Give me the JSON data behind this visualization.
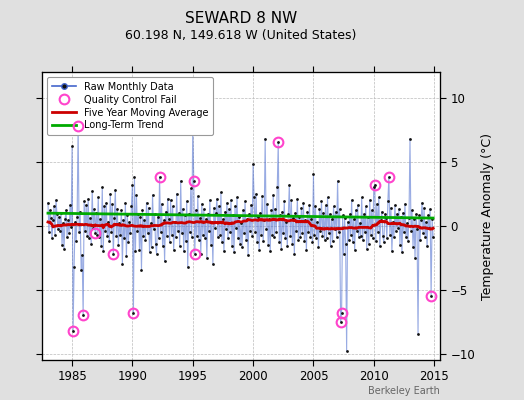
{
  "title": "SEWARD 8 NW",
  "subtitle": "60.198 N, 149.618 W (United States)",
  "ylabel": "Temperature Anomaly (°C)",
  "watermark": "Berkeley Earth",
  "xlim": [
    1982.5,
    2015.5
  ],
  "ylim": [
    -10.5,
    12
  ],
  "yticks": [
    -10,
    -5,
    0,
    5,
    10
  ],
  "xticks": [
    1985,
    1990,
    1995,
    2000,
    2005,
    2010,
    2015
  ],
  "bg_color": "#e0e0e0",
  "plot_bg_color": "#ffffff",
  "raw_line_color": "#4466cc",
  "raw_line_alpha": 0.55,
  "raw_dot_color": "#111111",
  "ma_color": "#cc0000",
  "trend_color": "#00aa00",
  "qc_color": "#ff44cc",
  "grid_color": "#bbbbbb",
  "grid_style": "--",
  "trend_intercept": 0.78,
  "trend_slope": -0.012,
  "raw_data": [
    [
      1983.0,
      1.8
    ],
    [
      1983.083,
      -0.5
    ],
    [
      1983.167,
      1.2
    ],
    [
      1983.25,
      0.6
    ],
    [
      1983.333,
      -1.0
    ],
    [
      1983.417,
      0.4
    ],
    [
      1983.5,
      1.5
    ],
    [
      1983.583,
      -0.7
    ],
    [
      1983.667,
      2.0
    ],
    [
      1983.75,
      0.9
    ],
    [
      1983.833,
      -0.3
    ],
    [
      1983.917,
      0.7
    ],
    [
      1984.0,
      -0.4
    ],
    [
      1984.083,
      1.0
    ],
    [
      1984.167,
      -1.5
    ],
    [
      1984.25,
      0.2
    ],
    [
      1984.333,
      -1.8
    ],
    [
      1984.417,
      0.5
    ],
    [
      1984.5,
      1.2
    ],
    [
      1984.583,
      -0.9
    ],
    [
      1984.667,
      0.4
    ],
    [
      1984.75,
      -0.6
    ],
    [
      1984.833,
      1.6
    ],
    [
      1984.917,
      -0.1
    ],
    [
      1985.0,
      6.2
    ],
    [
      1985.083,
      -8.2
    ],
    [
      1985.167,
      -3.2
    ],
    [
      1985.25,
      0.3
    ],
    [
      1985.333,
      -1.2
    ],
    [
      1985.417,
      0.7
    ],
    [
      1985.5,
      7.8
    ],
    [
      1985.583,
      -0.5
    ],
    [
      1985.667,
      1.1
    ],
    [
      1985.75,
      -3.5
    ],
    [
      1985.833,
      -2.3
    ],
    [
      1985.917,
      -7.0
    ],
    [
      1986.0,
      1.9
    ],
    [
      1986.083,
      -0.4
    ],
    [
      1986.167,
      1.6
    ],
    [
      1986.25,
      -0.8
    ],
    [
      1986.333,
      2.1
    ],
    [
      1986.417,
      -1.0
    ],
    [
      1986.5,
      0.6
    ],
    [
      1986.583,
      -1.4
    ],
    [
      1986.667,
      2.7
    ],
    [
      1986.75,
      -0.2
    ],
    [
      1986.833,
      1.3
    ],
    [
      1986.917,
      -0.6
    ],
    [
      1987.0,
      1.0
    ],
    [
      1987.083,
      -0.7
    ],
    [
      1987.167,
      2.2
    ],
    [
      1987.25,
      -0.9
    ],
    [
      1987.333,
      0.5
    ],
    [
      1987.417,
      -1.6
    ],
    [
      1987.5,
      3.0
    ],
    [
      1987.583,
      -2.0
    ],
    [
      1987.667,
      1.5
    ],
    [
      1987.75,
      -0.4
    ],
    [
      1987.833,
      1.8
    ],
    [
      1987.917,
      -0.8
    ],
    [
      1988.0,
      0.3
    ],
    [
      1988.083,
      -1.2
    ],
    [
      1988.167,
      2.5
    ],
    [
      1988.25,
      -0.5
    ],
    [
      1988.333,
      1.7
    ],
    [
      1988.417,
      -2.2
    ],
    [
      1988.5,
      0.6
    ],
    [
      1988.583,
      2.8
    ],
    [
      1988.667,
      -0.8
    ],
    [
      1988.75,
      1.3
    ],
    [
      1988.833,
      -1.5
    ],
    [
      1988.917,
      0.2
    ],
    [
      1989.0,
      -0.7
    ],
    [
      1989.083,
      1.2
    ],
    [
      1989.167,
      -3.0
    ],
    [
      1989.25,
      0.4
    ],
    [
      1989.333,
      -1.0
    ],
    [
      1989.417,
      1.8
    ],
    [
      1989.5,
      -2.4
    ],
    [
      1989.583,
      0.8
    ],
    [
      1989.667,
      -1.3
    ],
    [
      1989.75,
      0.3
    ],
    [
      1989.833,
      -0.6
    ],
    [
      1989.917,
      1.5
    ],
    [
      1990.0,
      3.2
    ],
    [
      1990.083,
      -6.8
    ],
    [
      1990.167,
      3.8
    ],
    [
      1990.25,
      -2.0
    ],
    [
      1990.333,
      2.4
    ],
    [
      1990.417,
      -0.4
    ],
    [
      1990.5,
      0.9
    ],
    [
      1990.583,
      -1.9
    ],
    [
      1990.667,
      0.7
    ],
    [
      1990.75,
      -3.5
    ],
    [
      1990.833,
      1.2
    ],
    [
      1990.917,
      -0.8
    ],
    [
      1991.0,
      0.4
    ],
    [
      1991.083,
      -1.1
    ],
    [
      1991.167,
      1.8
    ],
    [
      1991.25,
      -0.6
    ],
    [
      1991.333,
      1.4
    ],
    [
      1991.417,
      -2.1
    ],
    [
      1991.5,
      0.2
    ],
    [
      1991.583,
      -1.7
    ],
    [
      1991.667,
      2.4
    ],
    [
      1991.75,
      -0.3
    ],
    [
      1991.833,
      0.9
    ],
    [
      1991.917,
      -1.4
    ],
    [
      1992.0,
      -2.2
    ],
    [
      1992.083,
      0.7
    ],
    [
      1992.167,
      -1.0
    ],
    [
      1992.25,
      3.8
    ],
    [
      1992.333,
      -0.5
    ],
    [
      1992.417,
      1.7
    ],
    [
      1992.5,
      -1.6
    ],
    [
      1992.583,
      0.4
    ],
    [
      1992.667,
      -2.8
    ],
    [
      1992.75,
      1.1
    ],
    [
      1992.833,
      -0.8
    ],
    [
      1992.917,
      2.1
    ],
    [
      1993.0,
      0.5
    ],
    [
      1993.083,
      -1.3
    ],
    [
      1993.167,
      2.0
    ],
    [
      1993.25,
      -0.7
    ],
    [
      1993.333,
      1.5
    ],
    [
      1993.417,
      -1.9
    ],
    [
      1993.5,
      0.3
    ],
    [
      1993.583,
      -0.9
    ],
    [
      1993.667,
      2.5
    ],
    [
      1993.75,
      -0.4
    ],
    [
      1993.833,
      1.0
    ],
    [
      1993.917,
      -1.6
    ],
    [
      1994.0,
      3.5
    ],
    [
      1994.083,
      -0.6
    ],
    [
      1994.167,
      1.3
    ],
    [
      1994.25,
      -2.0
    ],
    [
      1994.333,
      0.8
    ],
    [
      1994.417,
      -1.2
    ],
    [
      1994.5,
      1.9
    ],
    [
      1994.583,
      -3.2
    ],
    [
      1994.667,
      0.9
    ],
    [
      1994.75,
      -0.5
    ],
    [
      1994.833,
      2.9
    ],
    [
      1994.917,
      -0.9
    ],
    [
      1995.0,
      7.8
    ],
    [
      1995.083,
      3.5
    ],
    [
      1995.167,
      -2.2
    ],
    [
      1995.25,
      1.2
    ],
    [
      1995.333,
      -0.8
    ],
    [
      1995.417,
      2.3
    ],
    [
      1995.5,
      -1.1
    ],
    [
      1995.583,
      0.6
    ],
    [
      1995.667,
      -2.2
    ],
    [
      1995.75,
      1.7
    ],
    [
      1995.833,
      -0.7
    ],
    [
      1995.917,
      1.3
    ],
    [
      1996.0,
      -1.0
    ],
    [
      1996.083,
      0.5
    ],
    [
      1996.167,
      -2.5
    ],
    [
      1996.25,
      0.9
    ],
    [
      1996.333,
      -0.4
    ],
    [
      1996.417,
      2.0
    ],
    [
      1996.5,
      -1.5
    ],
    [
      1996.583,
      0.3
    ],
    [
      1996.667,
      -3.0
    ],
    [
      1996.75,
      1.4
    ],
    [
      1996.833,
      -0.2
    ],
    [
      1996.917,
      1.0
    ],
    [
      1997.0,
      2.1
    ],
    [
      1997.083,
      -0.9
    ],
    [
      1997.167,
      1.5
    ],
    [
      1997.25,
      -0.7
    ],
    [
      1997.333,
      2.6
    ],
    [
      1997.417,
      -1.3
    ],
    [
      1997.5,
      0.5
    ],
    [
      1997.583,
      -2.0
    ],
    [
      1997.667,
      1.1
    ],
    [
      1997.75,
      -0.3
    ],
    [
      1997.833,
      1.8
    ],
    [
      1997.917,
      -1.0
    ],
    [
      1998.0,
      1.3
    ],
    [
      1998.083,
      -0.5
    ],
    [
      1998.167,
      2.0
    ],
    [
      1998.25,
      -1.6
    ],
    [
      1998.333,
      0.8
    ],
    [
      1998.417,
      -2.1
    ],
    [
      1998.5,
      1.5
    ],
    [
      1998.583,
      -0.2
    ],
    [
      1998.667,
      2.2
    ],
    [
      1998.75,
      -1.0
    ],
    [
      1998.833,
      0.7
    ],
    [
      1998.917,
      -1.4
    ],
    [
      1999.0,
      0.2
    ],
    [
      1999.083,
      -1.7
    ],
    [
      1999.167,
      1.2
    ],
    [
      1999.25,
      -0.6
    ],
    [
      1999.333,
      1.9
    ],
    [
      1999.417,
      -1.1
    ],
    [
      1999.5,
      0.5
    ],
    [
      1999.583,
      -2.3
    ],
    [
      1999.667,
      0.9
    ],
    [
      1999.75,
      -0.4
    ],
    [
      1999.833,
      1.6
    ],
    [
      1999.917,
      -0.8
    ],
    [
      2000.0,
      4.8
    ],
    [
      2000.083,
      2.2
    ],
    [
      2000.167,
      -0.5
    ],
    [
      2000.25,
      2.5
    ],
    [
      2000.333,
      -1.3
    ],
    [
      2000.417,
      0.7
    ],
    [
      2000.5,
      -1.9
    ],
    [
      2000.583,
      1.0
    ],
    [
      2000.667,
      -0.7
    ],
    [
      2000.75,
      2.3
    ],
    [
      2000.833,
      -1.2
    ],
    [
      2000.917,
      0.4
    ],
    [
      2001.0,
      6.8
    ],
    [
      2001.083,
      -0.3
    ],
    [
      2001.167,
      1.7
    ],
    [
      2001.25,
      -1.5
    ],
    [
      2001.333,
      0.5
    ],
    [
      2001.417,
      -2.0
    ],
    [
      2001.5,
      1.2
    ],
    [
      2001.583,
      -0.7
    ],
    [
      2001.667,
      2.4
    ],
    [
      2001.75,
      -0.9
    ],
    [
      2001.833,
      1.3
    ],
    [
      2001.917,
      -0.5
    ],
    [
      2002.0,
      3.0
    ],
    [
      2002.083,
      6.5
    ],
    [
      2002.167,
      -1.3
    ],
    [
      2002.25,
      0.8
    ],
    [
      2002.333,
      -1.8
    ],
    [
      2002.417,
      1.1
    ],
    [
      2002.5,
      -0.6
    ],
    [
      2002.583,
      1.9
    ],
    [
      2002.667,
      -1.0
    ],
    [
      2002.75,
      0.3
    ],
    [
      2002.833,
      -1.6
    ],
    [
      2002.917,
      0.9
    ],
    [
      2003.0,
      3.2
    ],
    [
      2003.083,
      -0.8
    ],
    [
      2003.167,
      2.0
    ],
    [
      2003.25,
      -1.4
    ],
    [
      2003.333,
      0.6
    ],
    [
      2003.417,
      -2.2
    ],
    [
      2003.5,
      1.0
    ],
    [
      2003.583,
      -0.4
    ],
    [
      2003.667,
      2.1
    ],
    [
      2003.75,
      -1.1
    ],
    [
      2003.833,
      0.7
    ],
    [
      2003.917,
      -0.9
    ],
    [
      2004.0,
      1.4
    ],
    [
      2004.083,
      -0.6
    ],
    [
      2004.167,
      1.8
    ],
    [
      2004.25,
      -1.2
    ],
    [
      2004.333,
      0.4
    ],
    [
      2004.417,
      -1.9
    ],
    [
      2004.5,
      1.1
    ],
    [
      2004.583,
      -0.5
    ],
    [
      2004.667,
      1.6
    ],
    [
      2004.75,
      -0.9
    ],
    [
      2004.833,
      0.5
    ],
    [
      2004.917,
      -1.3
    ],
    [
      2005.0,
      4.0
    ],
    [
      2005.083,
      -0.7
    ],
    [
      2005.167,
      1.5
    ],
    [
      2005.25,
      -1.0
    ],
    [
      2005.333,
      0.3
    ],
    [
      2005.417,
      -1.7
    ],
    [
      2005.5,
      1.3
    ],
    [
      2005.583,
      -0.4
    ],
    [
      2005.667,
      1.9
    ],
    [
      2005.75,
      -0.8
    ],
    [
      2005.833,
      1.0
    ],
    [
      2005.917,
      -1.1
    ],
    [
      2006.0,
      1.6
    ],
    [
      2006.083,
      -1.0
    ],
    [
      2006.167,
      2.2
    ],
    [
      2006.25,
      -0.6
    ],
    [
      2006.333,
      0.9
    ],
    [
      2006.417,
      -1.6
    ],
    [
      2006.5,
      0.5
    ],
    [
      2006.583,
      -1.2
    ],
    [
      2006.667,
      1.5
    ],
    [
      2006.75,
      -0.3
    ],
    [
      2006.833,
      1.1
    ],
    [
      2006.917,
      -0.9
    ],
    [
      2007.0,
      3.5
    ],
    [
      2007.083,
      -0.5
    ],
    [
      2007.167,
      1.3
    ],
    [
      2007.25,
      -7.5
    ],
    [
      2007.333,
      -6.8
    ],
    [
      2007.417,
      0.8
    ],
    [
      2007.5,
      -2.2
    ],
    [
      2007.583,
      0.6
    ],
    [
      2007.667,
      -1.4
    ],
    [
      2007.75,
      -9.8
    ],
    [
      2007.833,
      0.3
    ],
    [
      2007.917,
      -1.1
    ],
    [
      2008.0,
      0.9
    ],
    [
      2008.083,
      -0.7
    ],
    [
      2008.167,
      2.0
    ],
    [
      2008.25,
      -1.3
    ],
    [
      2008.333,
      0.5
    ],
    [
      2008.417,
      -1.9
    ],
    [
      2008.5,
      1.2
    ],
    [
      2008.583,
      -0.4
    ],
    [
      2008.667,
      1.6
    ],
    [
      2008.75,
      -0.9
    ],
    [
      2008.833,
      0.2
    ],
    [
      2008.917,
      -0.8
    ],
    [
      2009.0,
      2.2
    ],
    [
      2009.083,
      -1.1
    ],
    [
      2009.167,
      0.9
    ],
    [
      2009.25,
      -0.5
    ],
    [
      2009.333,
      1.5
    ],
    [
      2009.417,
      -1.8
    ],
    [
      2009.5,
      0.7
    ],
    [
      2009.583,
      -1.4
    ],
    [
      2009.667,
      2.0
    ],
    [
      2009.75,
      -0.7
    ],
    [
      2009.833,
      1.2
    ],
    [
      2009.917,
      -1.0
    ],
    [
      2010.0,
      3.0
    ],
    [
      2010.083,
      3.2
    ],
    [
      2010.167,
      -1.2
    ],
    [
      2010.25,
      1.7
    ],
    [
      2010.333,
      -0.5
    ],
    [
      2010.417,
      2.2
    ],
    [
      2010.5,
      -1.6
    ],
    [
      2010.583,
      0.4
    ],
    [
      2010.667,
      1.1
    ],
    [
      2010.75,
      -0.8
    ],
    [
      2010.833,
      -1.3
    ],
    [
      2010.917,
      0.9
    ],
    [
      2011.0,
      0.6
    ],
    [
      2011.083,
      -1.0
    ],
    [
      2011.167,
      1.9
    ],
    [
      2011.25,
      3.8
    ],
    [
      2011.333,
      -0.7
    ],
    [
      2011.417,
      1.4
    ],
    [
      2011.5,
      -2.0
    ],
    [
      2011.583,
      0.3
    ],
    [
      2011.667,
      -0.9
    ],
    [
      2011.75,
      1.6
    ],
    [
      2011.833,
      -0.4
    ],
    [
      2011.917,
      0.9
    ],
    [
      2012.0,
      -0.2
    ],
    [
      2012.083,
      1.3
    ],
    [
      2012.167,
      -1.5
    ],
    [
      2012.25,
      0.7
    ],
    [
      2012.333,
      -2.1
    ],
    [
      2012.417,
      1.0
    ],
    [
      2012.5,
      -0.5
    ],
    [
      2012.583,
      1.7
    ],
    [
      2012.667,
      -0.9
    ],
    [
      2012.75,
      0.2
    ],
    [
      2012.833,
      -1.2
    ],
    [
      2012.917,
      0.6
    ],
    [
      2013.0,
      6.8
    ],
    [
      2013.083,
      -0.4
    ],
    [
      2013.167,
      1.2
    ],
    [
      2013.25,
      -1.7
    ],
    [
      2013.333,
      0.5
    ],
    [
      2013.417,
      -2.5
    ],
    [
      2013.5,
      0.9
    ],
    [
      2013.583,
      -0.3
    ],
    [
      2013.667,
      -8.5
    ],
    [
      2013.75,
      0.8
    ],
    [
      2013.833,
      -1.1
    ],
    [
      2013.917,
      0.4
    ],
    [
      2014.0,
      1.8
    ],
    [
      2014.083,
      -0.6
    ],
    [
      2014.167,
      1.4
    ],
    [
      2014.25,
      -0.9
    ],
    [
      2014.333,
      0.3
    ],
    [
      2014.417,
      -1.6
    ],
    [
      2014.5,
      0.8
    ],
    [
      2014.583,
      -0.2
    ],
    [
      2014.667,
      1.3
    ],
    [
      2014.75,
      -5.5
    ],
    [
      2014.833,
      0.5
    ],
    [
      2014.917,
      -0.9
    ]
  ],
  "qc_fail_points": [
    [
      1985.083,
      -8.2
    ],
    [
      1985.917,
      -7.0
    ],
    [
      1985.5,
      7.8
    ],
    [
      1986.917,
      -0.6
    ],
    [
      1988.417,
      -2.2
    ],
    [
      1990.083,
      -6.8
    ],
    [
      1992.25,
      3.8
    ],
    [
      1995.083,
      3.5
    ],
    [
      1995.167,
      -2.2
    ],
    [
      2002.083,
      6.5
    ],
    [
      2007.25,
      -7.5
    ],
    [
      2007.333,
      -6.8
    ],
    [
      2010.083,
      3.2
    ],
    [
      2011.25,
      3.8
    ],
    [
      2014.75,
      -5.5
    ]
  ]
}
